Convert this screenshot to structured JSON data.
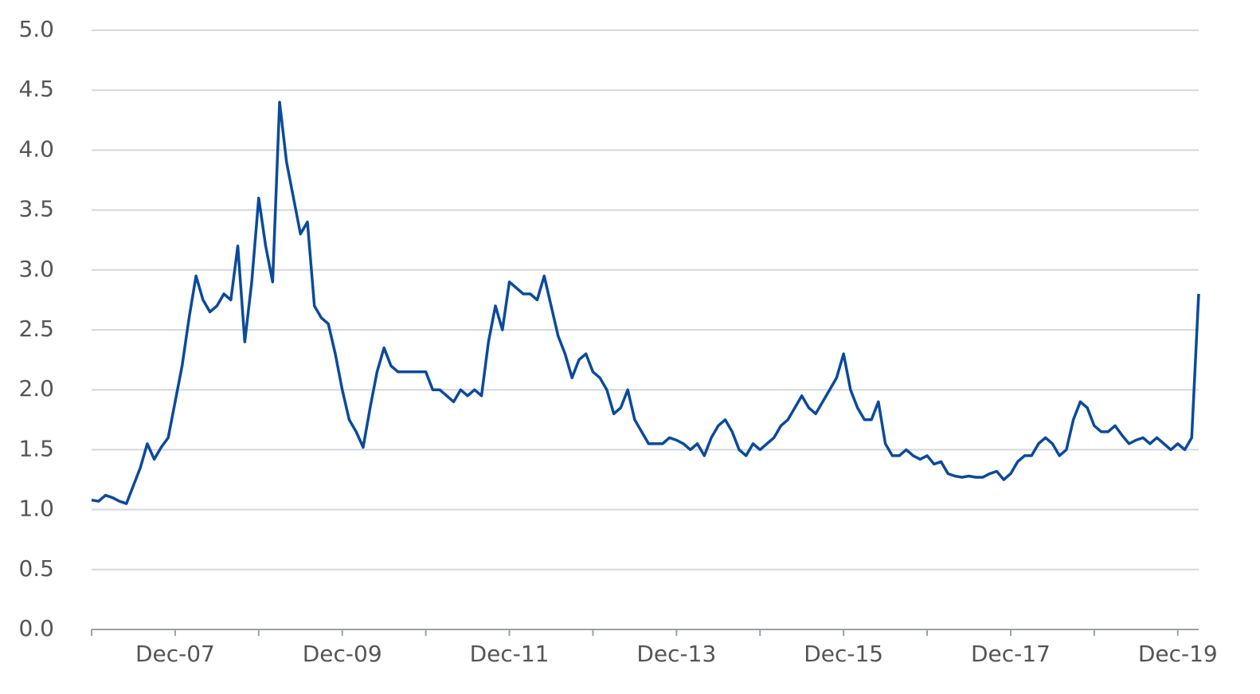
{
  "chart_data": {
    "type": "line",
    "x": [
      "2006-12",
      "2007-01",
      "2007-02",
      "2007-03",
      "2007-04",
      "2007-05",
      "2007-06",
      "2007-07",
      "2007-08",
      "2007-09",
      "2007-10",
      "2007-11",
      "2007-12",
      "2008-01",
      "2008-02",
      "2008-03",
      "2008-04",
      "2008-05",
      "2008-06",
      "2008-07",
      "2008-08",
      "2008-09",
      "2008-10",
      "2008-11",
      "2008-12",
      "2009-01",
      "2009-02",
      "2009-03",
      "2009-04",
      "2009-05",
      "2009-06",
      "2009-07",
      "2009-08",
      "2009-09",
      "2009-10",
      "2009-11",
      "2009-12",
      "2010-01",
      "2010-02",
      "2010-03",
      "2010-04",
      "2010-05",
      "2010-06",
      "2010-07",
      "2010-08",
      "2010-09",
      "2010-10",
      "2010-11",
      "2010-12",
      "2011-01",
      "2011-02",
      "2011-03",
      "2011-04",
      "2011-05",
      "2011-06",
      "2011-07",
      "2011-08",
      "2011-09",
      "2011-10",
      "2011-11",
      "2011-12",
      "2012-01",
      "2012-02",
      "2012-03",
      "2012-04",
      "2012-05",
      "2012-06",
      "2012-07",
      "2012-08",
      "2012-09",
      "2012-10",
      "2012-11",
      "2012-12",
      "2013-01",
      "2013-02",
      "2013-03",
      "2013-04",
      "2013-05",
      "2013-06",
      "2013-07",
      "2013-08",
      "2013-09",
      "2013-10",
      "2013-11",
      "2013-12",
      "2014-01",
      "2014-02",
      "2014-03",
      "2014-04",
      "2014-05",
      "2014-06",
      "2014-07",
      "2014-08",
      "2014-09",
      "2014-10",
      "2014-11",
      "2014-12",
      "2015-01",
      "2015-02",
      "2015-03",
      "2015-04",
      "2015-05",
      "2015-06",
      "2015-07",
      "2015-08",
      "2015-09",
      "2015-10",
      "2015-11",
      "2015-12",
      "2016-01",
      "2016-02",
      "2016-03",
      "2016-04",
      "2016-05",
      "2016-06",
      "2016-07",
      "2016-08",
      "2016-09",
      "2016-10",
      "2016-11",
      "2016-12",
      "2017-01",
      "2017-02",
      "2017-03",
      "2017-04",
      "2017-05",
      "2017-06",
      "2017-07",
      "2017-08",
      "2017-09",
      "2017-10",
      "2017-11",
      "2017-12",
      "2018-01",
      "2018-02",
      "2018-03",
      "2018-04",
      "2018-05",
      "2018-06",
      "2018-07",
      "2018-08",
      "2018-09",
      "2018-10",
      "2018-11",
      "2018-12",
      "2019-01",
      "2019-02",
      "2019-03",
      "2019-04",
      "2019-05",
      "2019-06",
      "2019-07",
      "2019-08",
      "2019-09",
      "2019-10",
      "2019-11",
      "2019-12",
      "2020-01",
      "2020-02",
      "2020-03"
    ],
    "series": [
      {
        "color": "#0b4a9c",
        "values": [
          1.08,
          1.07,
          1.12,
          1.1,
          1.07,
          1.05,
          1.2,
          1.35,
          1.55,
          1.42,
          1.52,
          1.6,
          1.9,
          2.2,
          2.6,
          2.95,
          2.75,
          2.65,
          2.7,
          2.8,
          2.75,
          3.2,
          2.4,
          2.9,
          3.6,
          3.2,
          2.9,
          4.4,
          3.9,
          3.6,
          3.3,
          3.4,
          2.7,
          2.6,
          2.55,
          2.3,
          2.0,
          1.75,
          1.65,
          1.52,
          1.85,
          2.15,
          2.35,
          2.2,
          2.15,
          2.15,
          2.15,
          2.15,
          2.15,
          2.0,
          2.0,
          1.95,
          1.9,
          2.0,
          1.95,
          2.0,
          1.95,
          2.4,
          2.7,
          2.5,
          2.9,
          2.85,
          2.8,
          2.8,
          2.75,
          2.95,
          2.7,
          2.45,
          2.3,
          2.1,
          2.25,
          2.3,
          2.15,
          2.1,
          2.0,
          1.8,
          1.85,
          2.0,
          1.75,
          1.65,
          1.55,
          1.55,
          1.55,
          1.6,
          1.58,
          1.55,
          1.5,
          1.55,
          1.45,
          1.6,
          1.7,
          1.75,
          1.65,
          1.5,
          1.45,
          1.55,
          1.5,
          1.55,
          1.6,
          1.7,
          1.75,
          1.85,
          1.95,
          1.85,
          1.8,
          1.9,
          2.0,
          2.1,
          2.3,
          2.0,
          1.85,
          1.75,
          1.75,
          1.9,
          1.55,
          1.45,
          1.45,
          1.5,
          1.45,
          1.42,
          1.45,
          1.38,
          1.4,
          1.3,
          1.28,
          1.27,
          1.28,
          1.27,
          1.27,
          1.3,
          1.32,
          1.25,
          1.3,
          1.4,
          1.45,
          1.45,
          1.55,
          1.6,
          1.55,
          1.45,
          1.5,
          1.75,
          1.9,
          1.85,
          1.7,
          1.65,
          1.65,
          1.7,
          1.62,
          1.55,
          1.58,
          1.6,
          1.55,
          1.6,
          1.55,
          1.5,
          1.55,
          1.5,
          1.6,
          2.8
        ]
      }
    ],
    "xlim": [
      "2006-12",
      "2020-03"
    ],
    "xticks": [
      {
        "value": "2006-12",
        "label": null
      },
      {
        "value": "2007-12",
        "label": "Dec-07"
      },
      {
        "value": "2008-12",
        "label": null
      },
      {
        "value": "2009-12",
        "label": "Dec-09"
      },
      {
        "value": "2010-12",
        "label": null
      },
      {
        "value": "2011-12",
        "label": "Dec-11"
      },
      {
        "value": "2012-12",
        "label": null
      },
      {
        "value": "2013-12",
        "label": "Dec-13"
      },
      {
        "value": "2014-12",
        "label": null
      },
      {
        "value": "2015-12",
        "label": "Dec-15"
      },
      {
        "value": "2016-12",
        "label": null
      },
      {
        "value": "2017-12",
        "label": "Dec-17"
      },
      {
        "value": "2018-12",
        "label": null
      },
      {
        "value": "2019-12",
        "label": "Dec-19"
      }
    ],
    "ylim": [
      0,
      5
    ],
    "yticks": [
      {
        "value": 0,
        "label": "0.0"
      },
      0.5,
      {
        "value": 1,
        "label": "1.0"
      },
      1.5,
      {
        "value": 2,
        "label": "2.0"
      },
      2.5,
      {
        "value": 3,
        "label": "3.0"
      },
      3.5,
      {
        "value": 4,
        "label": "4.0"
      },
      4.5,
      {
        "value": 5,
        "label": "5.0"
      }
    ],
    "grid": true
  }
}
